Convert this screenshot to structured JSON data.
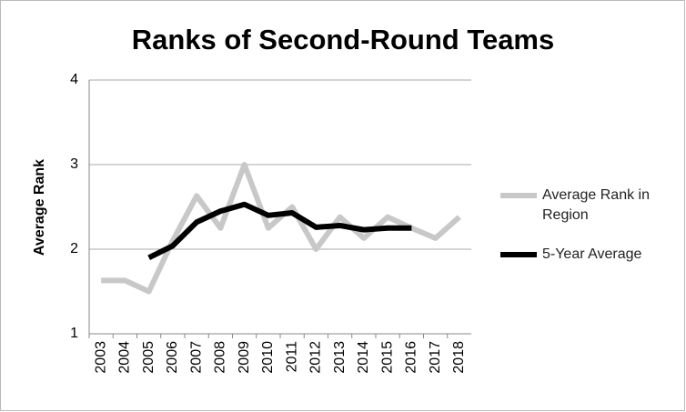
{
  "chart_data": {
    "type": "line",
    "title": "Ranks of Second-Round Teams",
    "y_label": "Average Rank",
    "categories": [
      "2003",
      "2004",
      "2005",
      "2006",
      "2007",
      "2008",
      "2009",
      "2010",
      "2011",
      "2012",
      "2013",
      "2014",
      "2015",
      "2016",
      "2017",
      "2018"
    ],
    "series": [
      {
        "name": "Average Rank in Region",
        "color": "#c8c8c8",
        "values": [
          1.63,
          1.63,
          1.5,
          2.1,
          2.63,
          2.25,
          3.0,
          2.25,
          2.5,
          2.0,
          2.38,
          2.13,
          2.38,
          2.25,
          2.13,
          2.38
        ]
      },
      {
        "name": "5-Year Average",
        "color": "#000000",
        "values": [
          null,
          null,
          1.9,
          2.04,
          2.32,
          2.45,
          2.53,
          2.4,
          2.43,
          2.26,
          2.28,
          2.23,
          2.25,
          2.25,
          null,
          null
        ]
      }
    ],
    "ylim": [
      1,
      4
    ],
    "yticks": [
      1,
      2,
      3,
      4
    ],
    "grid": true
  }
}
